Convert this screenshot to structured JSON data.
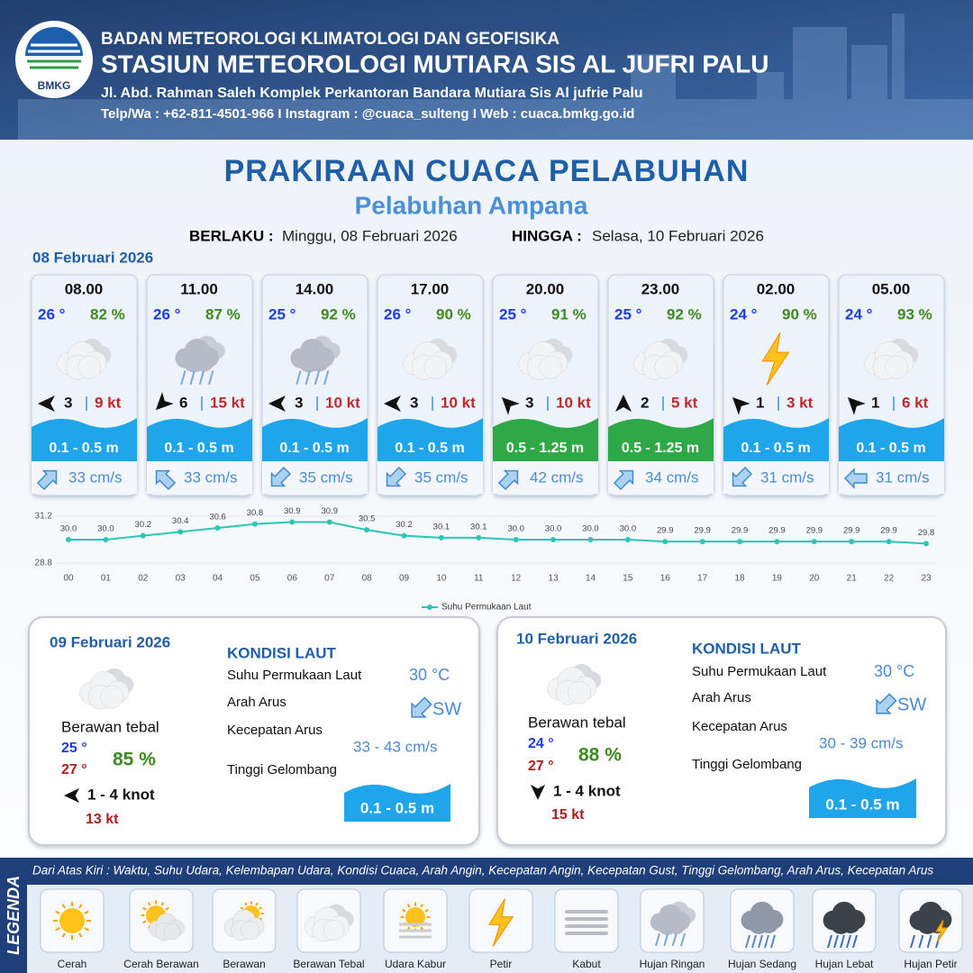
{
  "header": {
    "logo_text": "BMKG",
    "agency": "BADAN METEOROLOGI KLIMATOLOGI DAN GEOFISIKA",
    "station": "STASIUN METEOROLOGI MUTIARA SIS AL JUFRI PALU",
    "address": "Jl. Abd. Rahman Saleh Komplek Perkantoran Bandara Mutiara Sis Al jufrie Palu",
    "contact": "Telp/Wa : +62-811-4501-966  I  Instagram : @cuaca_sulteng  I  Web : cuaca.bmkg.go.id"
  },
  "title": "PRAKIRAAN CUACA PELABUHAN",
  "subtitle": "Pelabuhan Ampana",
  "validity": {
    "from_label": "BERLAKU :",
    "from": "Minggu, 08 Februari 2026",
    "to_label": "HINGGA :",
    "to": "Selasa, 10 Februari 2026"
  },
  "day1_date": "08 Februari 2026",
  "cards": [
    {
      "time": "08.00",
      "temp": "26 °",
      "humidity": "82 %",
      "icon": 3,
      "wind_deg": 180,
      "wind": "3",
      "gust": "9 kt",
      "wave": "0.1 - 0.5 m",
      "wave_color": "#1ea5ea",
      "current_deg": 315,
      "current": "33 cm/s"
    },
    {
      "time": "11.00",
      "temp": "26 °",
      "humidity": "87 %",
      "icon": 7,
      "wind_deg": 135,
      "wind": "6",
      "gust": "15 kt",
      "wave": "0.1 - 0.5 m",
      "wave_color": "#1ea5ea",
      "current_deg": 225,
      "current": "33 cm/s"
    },
    {
      "time": "14.00",
      "temp": "25 °",
      "humidity": "92 %",
      "icon": 7,
      "wind_deg": 180,
      "wind": "3",
      "gust": "10 kt",
      "wave": "0.1 - 0.5 m",
      "wave_color": "#1ea5ea",
      "current_deg": 135,
      "current": "35 cm/s"
    },
    {
      "time": "17.00",
      "temp": "26 °",
      "humidity": "90 %",
      "icon": 3,
      "wind_deg": 180,
      "wind": "3",
      "gust": "10 kt",
      "wave": "0.1 - 0.5 m",
      "wave_color": "#1ea5ea",
      "current_deg": 135,
      "current": "35 cm/s"
    },
    {
      "time": "20.00",
      "temp": "25 °",
      "humidity": "91 %",
      "icon": 3,
      "wind_deg": 225,
      "wind": "3",
      "gust": "10 kt",
      "wave": "0.5 - 1.25 m",
      "wave_color": "#2fa847",
      "current_deg": 315,
      "current": "42 cm/s"
    },
    {
      "time": "23.00",
      "temp": "25 °",
      "humidity": "92 %",
      "icon": 3,
      "wind_deg": 270,
      "wind": "2",
      "gust": "5 kt",
      "wave": "0.5 - 1.25 m",
      "wave_color": "#2fa847",
      "current_deg": 315,
      "current": "34 cm/s"
    },
    {
      "time": "02.00",
      "temp": "24 °",
      "humidity": "90 %",
      "icon": 5,
      "wind_deg": 225,
      "wind": "1",
      "gust": "3 kt",
      "wave": "0.1 - 0.5 m",
      "wave_color": "#1ea5ea",
      "current_deg": 135,
      "current": "31 cm/s"
    },
    {
      "time": "05.00",
      "temp": "24 °",
      "humidity": "93 %",
      "icon": 3,
      "wind_deg": 225,
      "wind": "1",
      "gust": "6 kt",
      "wave": "0.1 - 0.5 m",
      "wave_color": "#1ea5ea",
      "current_deg": 180,
      "current": "31 cm/s"
    }
  ],
  "chart_data": {
    "type": "line",
    "categories": [
      "00",
      "01",
      "02",
      "03",
      "04",
      "05",
      "06",
      "07",
      "08",
      "09",
      "10",
      "11",
      "12",
      "13",
      "14",
      "15",
      "16",
      "17",
      "18",
      "19",
      "20",
      "21",
      "22",
      "23"
    ],
    "series": [
      {
        "name": "Suhu Permukaan Laut",
        "color": "#2ec4b6",
        "values": [
          30.0,
          30.0,
          30.2,
          30.4,
          30.6,
          30.8,
          30.9,
          30.9,
          30.5,
          30.2,
          30.1,
          30.1,
          30.0,
          30.0,
          30.0,
          30.0,
          29.9,
          29.9,
          29.9,
          29.9,
          29.9,
          29.9,
          29.9,
          29.8
        ],
        "value_labels": [
          "30.0",
          "30.0",
          "30.2",
          "30.4",
          "30.6",
          "30.8",
          "30.9",
          "30.9",
          "30.5",
          "30.2",
          "30.1",
          "30.1",
          "30.0",
          "30.0",
          "30.0",
          "30.0",
          "29.9",
          "29.9",
          "29.9",
          "29.9",
          "29.9",
          "29.9",
          "29.9",
          "29.8"
        ]
      }
    ],
    "ylim": [
      28.8,
      31.2
    ],
    "yticks": [
      28.8,
      31.2
    ],
    "grid": true,
    "legend": "bottom"
  },
  "days": [
    {
      "date": "09 Februari 2026",
      "icon": 3,
      "condition": "Berawan tebal",
      "temp_min": "25 °",
      "temp_max": "27 °",
      "humidity": "85 %",
      "wind_deg": 180,
      "wind": "1 - 4 knot",
      "gust": "13 kt",
      "sea_title": "KONDISI LAUT",
      "labels": [
        "Suhu Permukaan Laut",
        "Arah Arus",
        "Kecepatan Arus",
        "Tinggi Gelombang"
      ],
      "sst": "30 °C",
      "current_deg": 135,
      "current_dir": "SW",
      "current": "33 - 43 cm/s",
      "wave": "0.1 - 0.5 m"
    },
    {
      "date": "10 Februari 2026",
      "icon": 3,
      "condition": "Berawan tebal",
      "temp_min": "24 °",
      "temp_max": "27 °",
      "humidity": "88 %",
      "wind_deg": 90,
      "wind": "1 - 4 knot",
      "gust": "15 kt",
      "sea_title": "KONDISI LAUT",
      "labels": [
        "Suhu Permukaan Laut",
        "Arah Arus",
        "Kecepatan Arus",
        "Tinggi Gelombang"
      ],
      "sst": "30 °C",
      "current_deg": 135,
      "current_dir": "SW",
      "current": "30 - 39 cm/s",
      "wave": "0.1 - 0.5 m"
    }
  ],
  "legend": {
    "title": "LEGENDA",
    "caption": "Dari Atas Kiri : Waktu, Suhu Udara, Kelembapan Udara, Kondisi Cuaca, Arah Angin, Kecepatan Angin, Kecepatan Gust, Tinggi Gelombang, Arah Arus, Kecepatan Arus",
    "items": [
      "Cerah",
      "Cerah Berawan",
      "Berawan",
      "Berawan Tebal",
      "Udara Kabur",
      "Petir",
      "Kabut",
      "Hujan Ringan",
      "Hujan Sedang",
      "Hujan Lebat",
      "Hujan Petir"
    ]
  }
}
